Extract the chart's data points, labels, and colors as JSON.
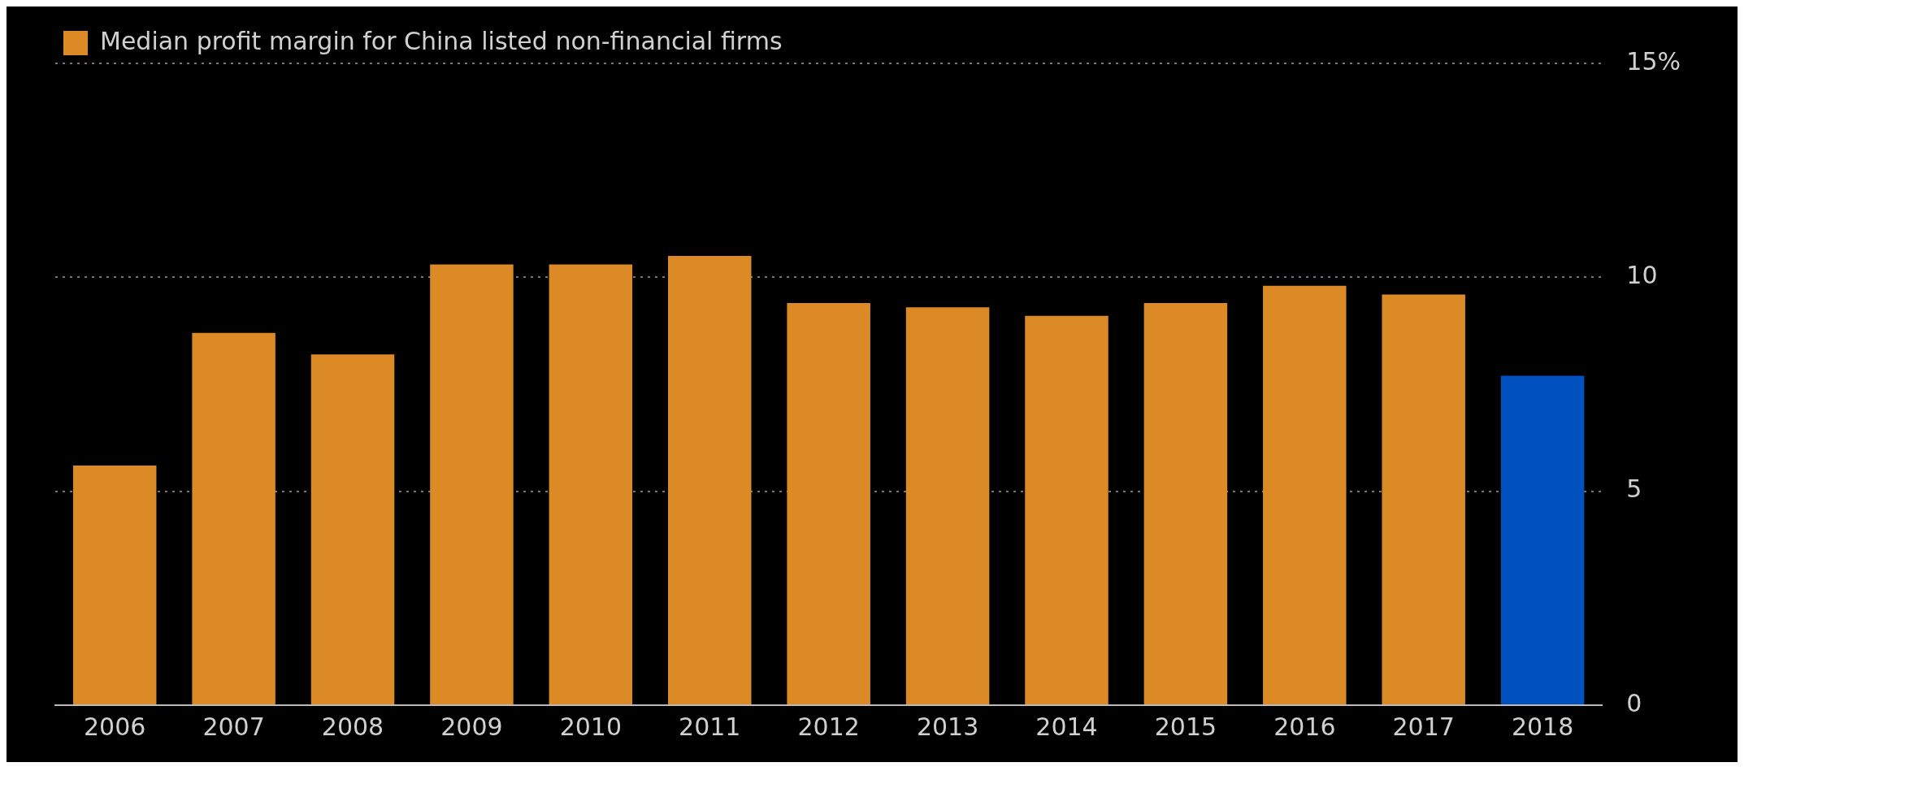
{
  "chart_data": {
    "type": "bar",
    "categories": [
      "2006",
      "2007",
      "2008",
      "2009",
      "2010",
      "2011",
      "2012",
      "2013",
      "2014",
      "2015",
      "2016",
      "2017",
      "2018"
    ],
    "series": [
      {
        "name": "Median profit margin for China listed non-financial firms",
        "color": "#db8a25",
        "colors": [
          "#db8a25",
          "#db8a25",
          "#db8a25",
          "#db8a25",
          "#db8a25",
          "#db8a25",
          "#db8a25",
          "#db8a25",
          "#db8a25",
          "#db8a25",
          "#db8a25",
          "#db8a25",
          "#0050c0"
        ],
        "values": [
          5.6,
          8.7,
          8.2,
          10.3,
          10.3,
          10.5,
          9.4,
          9.3,
          9.1,
          9.4,
          9.8,
          9.6,
          7.7
        ]
      }
    ],
    "ylim": [
      0,
      15
    ],
    "yticks": [
      0,
      5,
      10,
      {
        "value": 15,
        "label": "15%"
      }
    ],
    "grid": "y",
    "legend": "top left"
  }
}
